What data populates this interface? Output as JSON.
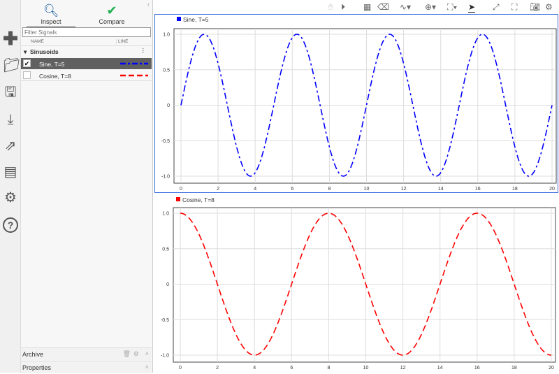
{
  "sidebar_icons": [
    "plus-icon",
    "folder-icon",
    "save-icon",
    "download-icon",
    "share-icon",
    "report-icon",
    "gear-icon",
    "help-icon"
  ],
  "tabs": [
    {
      "label": "Inspect",
      "icon": "magnifier-icon"
    },
    {
      "label": "Compare",
      "icon": "check-circle-icon"
    }
  ],
  "filter": {
    "placeholder": "Filter Signals"
  },
  "columns": {
    "name": "NAME",
    "line": "LINE"
  },
  "group": "Sinusoids",
  "signals": [
    {
      "name": "Sine, T=5",
      "checked": true,
      "color": "#0000ff",
      "style": "dash-dot"
    },
    {
      "name": "Cosine, T=8",
      "checked": false,
      "color": "#ff0000",
      "style": "dashed"
    }
  ],
  "archive_label": "Archive",
  "properties_label": "Properties",
  "toolbar_icons": [
    "pan-hand-icon",
    "play-icon",
    "layout-grid-icon",
    "eraser-icon",
    "signal-icon",
    "zoom-icon",
    "fit-icon",
    "cursor-icon",
    "expand-icon",
    "fullscreen-icon",
    "camera-icon",
    "settings-icon"
  ],
  "chart_data": [
    {
      "type": "line",
      "legend": "Sine, T=5",
      "color": "#0000ff",
      "function": "sin(2*pi*t/5)",
      "xlim": [
        0,
        20
      ],
      "ylim": [
        -1,
        1
      ],
      "xticks": [
        "0",
        "2",
        "4",
        "6",
        "8",
        "10",
        "12",
        "14",
        "16",
        "18",
        "20"
      ],
      "yticks": [
        "1.0",
        "0.5",
        "0",
        "-0.5",
        "-1.0"
      ],
      "grid": true
    },
    {
      "type": "line",
      "legend": "Cosine, T=8",
      "color": "#ff0000",
      "function": "cos(2*pi*t/8)",
      "xlim": [
        0,
        20
      ],
      "ylim": [
        -1,
        1
      ],
      "xticks": [
        "0",
        "2",
        "4",
        "6",
        "8",
        "10",
        "12",
        "14",
        "16",
        "18",
        "20"
      ],
      "yticks": [
        "1.0",
        "0.5",
        "0",
        "-0.5",
        "-1.0"
      ],
      "grid": true
    }
  ]
}
